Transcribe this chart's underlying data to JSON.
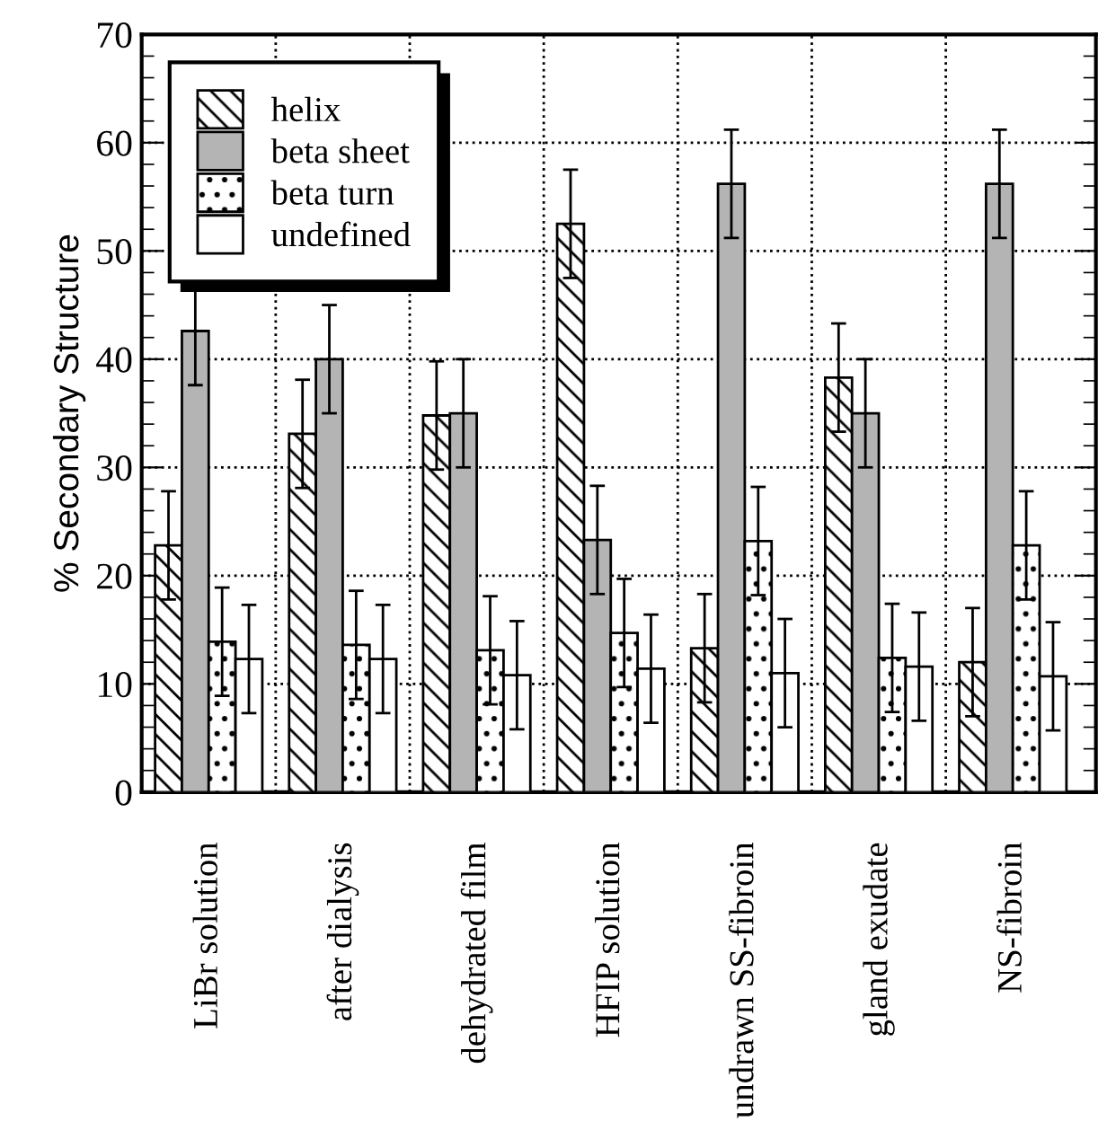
{
  "chart_data": {
    "type": "bar",
    "ylabel": "% Secondary Structure",
    "categories": [
      "LiBr solution",
      "after dialysis",
      "dehydrated film",
      "HFIP solution",
      "undrawn SS-fibroin",
      "gland exudate",
      "NS-fibroin"
    ],
    "series": [
      {
        "name": "helix",
        "color": "#000000",
        "values": [
          22.8,
          33.1,
          34.8,
          52.5,
          13.3,
          38.3,
          12.0
        ],
        "errors": [
          5,
          5,
          5,
          5,
          5,
          5,
          5
        ]
      },
      {
        "name": "beta sheet",
        "color": "#b4b4b4",
        "values": [
          42.6,
          40.0,
          35.0,
          23.3,
          56.2,
          35.0,
          56.2
        ],
        "errors": [
          5,
          5,
          5,
          5,
          5,
          5,
          5
        ]
      },
      {
        "name": "beta turn",
        "color": "#000000",
        "values": [
          13.9,
          13.6,
          13.1,
          14.7,
          23.2,
          12.4,
          22.8
        ],
        "errors": [
          5,
          5,
          5,
          5,
          5,
          5,
          5
        ]
      },
      {
        "name": "undefined",
        "color": "#ffffff",
        "values": [
          12.3,
          12.3,
          10.8,
          11.4,
          11.0,
          11.6,
          10.7
        ],
        "errors": [
          5,
          5,
          5,
          5,
          5,
          5,
          5
        ]
      }
    ],
    "ylim": [
      0,
      70
    ],
    "yticks": [
      0,
      10,
      20,
      30,
      40,
      50,
      60,
      70
    ],
    "grid": true,
    "legend": "top left"
  }
}
